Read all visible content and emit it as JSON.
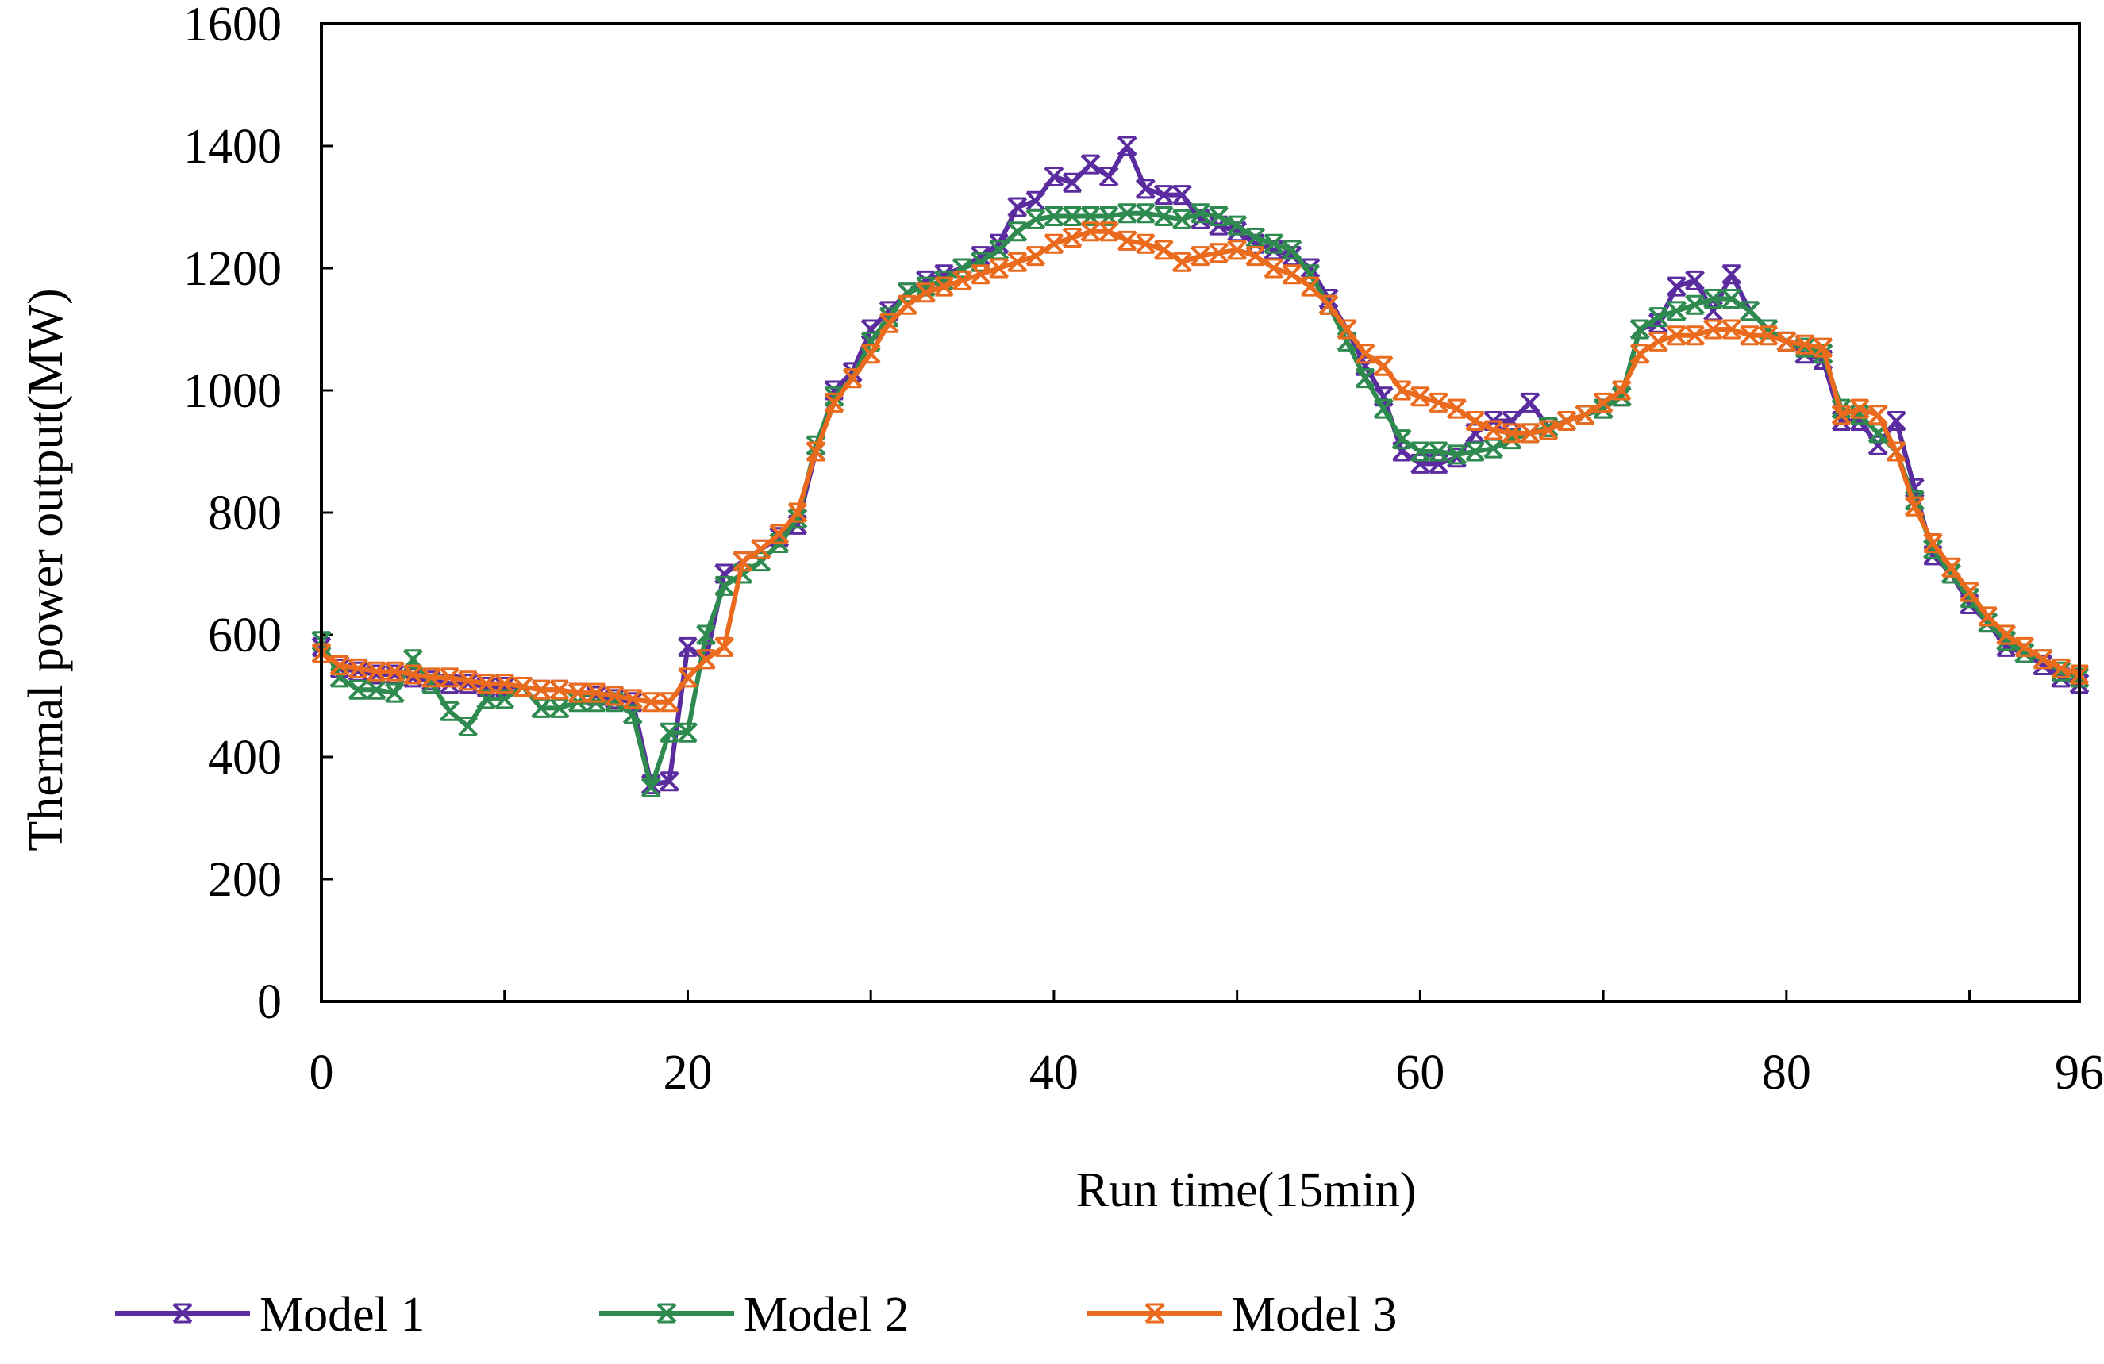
{
  "chart_data": {
    "type": "line",
    "title": "",
    "xlabel": "Run time(15min)",
    "ylabel": "Thermal  power output(MW)",
    "xlim": [
      0,
      96
    ],
    "ylim": [
      0,
      1600
    ],
    "xticks": [
      0,
      20,
      40,
      60,
      80,
      96
    ],
    "xminor_ticks": [
      10,
      30,
      50,
      70,
      90
    ],
    "yticks": [
      0,
      200,
      400,
      600,
      800,
      1000,
      1200,
      1400,
      1600
    ],
    "grid": false,
    "legend_position": "bottom",
    "marker": "x-star",
    "x": [
      0,
      1,
      2,
      3,
      4,
      5,
      6,
      7,
      8,
      9,
      10,
      11,
      12,
      13,
      14,
      15,
      16,
      17,
      18,
      19,
      20,
      21,
      22,
      23,
      24,
      25,
      26,
      27,
      28,
      29,
      30,
      31,
      32,
      33,
      34,
      35,
      36,
      37,
      38,
      39,
      40,
      41,
      42,
      43,
      44,
      45,
      46,
      47,
      48,
      49,
      50,
      51,
      52,
      53,
      54,
      55,
      56,
      57,
      58,
      59,
      60,
      61,
      62,
      63,
      64,
      65,
      66,
      67,
      68,
      69,
      70,
      71,
      72,
      73,
      74,
      75,
      76,
      77,
      78,
      79,
      80,
      81,
      82,
      83,
      84,
      85,
      86,
      87,
      88,
      89,
      90,
      91,
      92,
      93,
      94,
      95,
      96
    ],
    "series": [
      {
        "name": "Model 1",
        "color": "#5b2c9f",
        "values": [
          580,
          545,
          540,
          535,
          535,
          530,
          525,
          520,
          520,
          515,
          515,
          515,
          510,
          510,
          505,
          500,
          495,
          490,
          355,
          360,
          580,
          560,
          700,
          720,
          740,
          760,
          780,
          900,
          1000,
          1030,
          1100,
          1130,
          1160,
          1180,
          1190,
          1200,
          1220,
          1240,
          1300,
          1310,
          1350,
          1340,
          1370,
          1350,
          1400,
          1330,
          1320,
          1320,
          1280,
          1270,
          1260,
          1240,
          1230,
          1220,
          1200,
          1150,
          1100,
          1040,
          990,
          900,
          880,
          880,
          890,
          930,
          950,
          950,
          980,
          940,
          950,
          960,
          970,
          990,
          1100,
          1110,
          1170,
          1180,
          1130,
          1190,
          1130,
          1100,
          1080,
          1060,
          1050,
          950,
          950,
          910,
          950,
          840,
          730,
          700,
          650,
          620,
          580,
          570,
          550,
          530,
          520
        ]
      },
      {
        "name": "Model 2",
        "color": "#2e8a4f",
        "values": [
          590,
          530,
          510,
          510,
          505,
          560,
          520,
          475,
          450,
          495,
          495,
          515,
          480,
          480,
          490,
          490,
          490,
          470,
          350,
          440,
          440,
          600,
          680,
          700,
          720,
          750,
          790,
          910,
          990,
          1020,
          1080,
          1120,
          1160,
          1170,
          1180,
          1200,
          1210,
          1230,
          1260,
          1280,
          1285,
          1285,
          1285,
          1285,
          1290,
          1290,
          1285,
          1280,
          1290,
          1285,
          1270,
          1250,
          1240,
          1230,
          1190,
          1140,
          1080,
          1020,
          970,
          920,
          900,
          900,
          895,
          900,
          905,
          920,
          930,
          940,
          950,
          960,
          970,
          990,
          1100,
          1120,
          1130,
          1140,
          1150,
          1150,
          1130,
          1100,
          1080,
          1070,
          1060,
          970,
          960,
          930,
          900,
          820,
          740,
          700,
          660,
          620,
          590,
          570,
          560,
          540,
          530
        ]
      },
      {
        "name": "Model 3",
        "color": "#ea6a1e",
        "values": [
          570,
          550,
          545,
          540,
          540,
          535,
          530,
          530,
          525,
          520,
          520,
          515,
          510,
          510,
          505,
          505,
          500,
          495,
          490,
          490,
          530,
          560,
          580,
          720,
          740,
          765,
          800,
          900,
          980,
          1020,
          1060,
          1110,
          1140,
          1160,
          1170,
          1180,
          1190,
          1200,
          1210,
          1220,
          1240,
          1250,
          1260,
          1260,
          1245,
          1240,
          1230,
          1210,
          1220,
          1225,
          1230,
          1220,
          1200,
          1190,
          1170,
          1140,
          1100,
          1060,
          1040,
          1000,
          990,
          980,
          970,
          950,
          935,
          930,
          930,
          935,
          950,
          960,
          980,
          1000,
          1060,
          1080,
          1090,
          1090,
          1100,
          1100,
          1090,
          1090,
          1080,
          1075,
          1070,
          960,
          970,
          960,
          900,
          810,
          750,
          710,
          670,
          630,
          600,
          580,
          560,
          545,
          535
        ]
      }
    ]
  }
}
